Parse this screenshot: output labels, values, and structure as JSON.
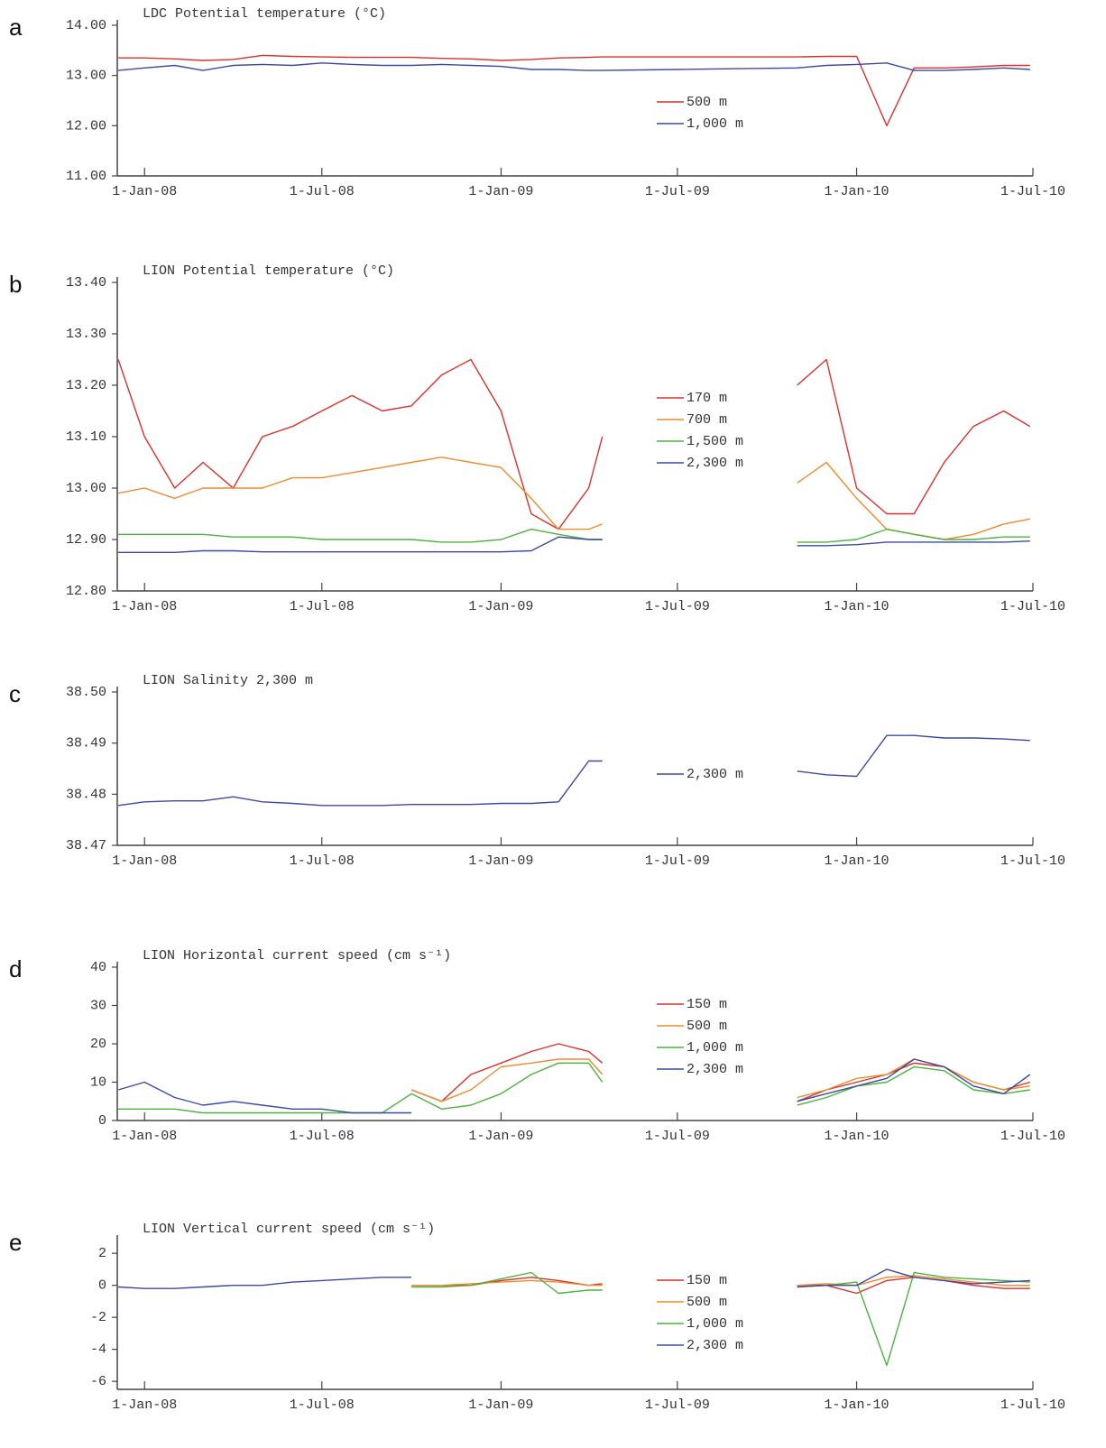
{
  "chart_data": [
    {
      "type": "line",
      "panel_label": "a",
      "title": "LDC Potential temperature (°C)",
      "x": [
        "2007-12-05",
        "2008-01-01",
        "2008-02-01",
        "2008-03-01",
        "2008-04-01",
        "2008-05-01",
        "2008-06-01",
        "2008-07-01",
        "2008-08-01",
        "2008-09-01",
        "2008-10-01",
        "2008-11-01",
        "2008-12-01",
        "2009-01-01",
        "2009-02-01",
        "2009-03-01",
        "2009-04-01",
        "2009-04-15",
        "2009-07-01",
        "2009-11-01",
        "2009-12-01",
        "2010-01-01",
        "2010-02-01",
        "2010-03-01",
        "2010-04-01",
        "2010-05-01",
        "2010-06-01",
        "2010-06-28"
      ],
      "xlim": [
        "2007-12-04",
        "2010-07-01"
      ],
      "xticks": [
        {
          "value": "2008-01-01",
          "label": "1-Jan-08"
        },
        {
          "value": "2008-07-01",
          "label": "1-Jul-08"
        },
        {
          "value": "2009-01-01",
          "label": "1-Jan-09"
        },
        {
          "value": "2009-07-01",
          "label": "1-Jul-09"
        },
        {
          "value": "2010-01-01",
          "label": "1-Jan-10"
        },
        {
          "value": "2010-07-01",
          "label": "1-Jul-10"
        }
      ],
      "ylim": [
        11,
        14
      ],
      "yticks": [
        {
          "value": 11,
          "label": "11.00"
        },
        {
          "value": 12,
          "label": "12.00"
        },
        {
          "value": 13,
          "label": "13.00"
        },
        {
          "value": 14,
          "label": "14.00"
        }
      ],
      "legend": "center",
      "series": [
        {
          "name": "500 m",
          "color": "#d9312b",
          "values": [
            13.35,
            13.35,
            13.33,
            13.3,
            13.32,
            13.4,
            13.38,
            13.37,
            13.36,
            13.36,
            13.36,
            13.34,
            13.33,
            13.3,
            13.32,
            13.35,
            13.36,
            13.37,
            13.37,
            13.37,
            13.38,
            13.38,
            12.0,
            13.15,
            13.15,
            13.17,
            13.2,
            13.2
          ]
        },
        {
          "name": "1,000 m",
          "color": "#3b4aa0",
          "values": [
            13.1,
            13.15,
            13.2,
            13.1,
            13.2,
            13.22,
            13.2,
            13.25,
            13.22,
            13.2,
            13.2,
            13.22,
            13.2,
            13.18,
            13.12,
            13.12,
            13.1,
            13.1,
            13.12,
            13.15,
            13.2,
            13.22,
            13.25,
            13.1,
            13.1,
            13.12,
            13.15,
            13.12
          ]
        }
      ]
    },
    {
      "type": "line",
      "panel_label": "b",
      "title": "LION Potential temperature (°C)",
      "x": [
        "2007-12-05",
        "2008-01-01",
        "2008-02-01",
        "2008-03-01",
        "2008-04-01",
        "2008-05-01",
        "2008-06-01",
        "2008-07-01",
        "2008-08-01",
        "2008-09-01",
        "2008-10-01",
        "2008-11-01",
        "2008-12-01",
        "2009-01-01",
        "2009-02-01",
        "2009-03-01",
        "2009-04-01",
        "2009-04-15",
        "2009-07-01",
        "2009-11-01",
        "2009-12-01",
        "2010-01-01",
        "2010-02-01",
        "2010-03-01",
        "2010-04-01",
        "2010-05-01",
        "2010-06-01",
        "2010-06-28"
      ],
      "xlim": [
        "2007-12-04",
        "2010-07-01"
      ],
      "xticks": [
        {
          "value": "2008-01-01",
          "label": "1-Jan-08"
        },
        {
          "value": "2008-07-01",
          "label": "1-Jul-08"
        },
        {
          "value": "2009-01-01",
          "label": "1-Jan-09"
        },
        {
          "value": "2009-07-01",
          "label": "1-Jul-09"
        },
        {
          "value": "2010-01-01",
          "label": "1-Jan-10"
        },
        {
          "value": "2010-07-01",
          "label": "1-Jul-10"
        }
      ],
      "ylim": [
        12.8,
        13.4
      ],
      "yticks": [
        {
          "value": 12.8,
          "label": "12.80"
        },
        {
          "value": 12.9,
          "label": "12.90"
        },
        {
          "value": 13,
          "label": "13.00"
        },
        {
          "value": 13.1,
          "label": "13.10"
        },
        {
          "value": 13.2,
          "label": "13.20"
        },
        {
          "value": 13.3,
          "label": "13.30"
        },
        {
          "value": 13.4,
          "label": "13.40"
        }
      ],
      "legend": "center",
      "series": [
        {
          "name": "170 m",
          "color": "#d9312b",
          "values": [
            13.25,
            13.1,
            13.0,
            13.05,
            13.0,
            13.1,
            13.12,
            13.15,
            13.18,
            13.15,
            13.16,
            13.22,
            13.25,
            13.15,
            12.95,
            12.92,
            13.0,
            13.1,
            null,
            13.2,
            13.25,
            13.0,
            12.95,
            12.95,
            13.05,
            13.12,
            13.15,
            13.12
          ]
        },
        {
          "name": "700 m",
          "color": "#f08a2c",
          "values": [
            12.99,
            13.0,
            12.98,
            13.0,
            13.0,
            13.0,
            13.02,
            13.02,
            13.03,
            13.04,
            13.05,
            13.06,
            13.05,
            13.04,
            12.98,
            12.92,
            12.92,
            12.93,
            null,
            13.01,
            13.05,
            12.98,
            12.92,
            12.91,
            12.9,
            12.91,
            12.93,
            12.94
          ]
        },
        {
          "name": "1,500 m",
          "color": "#4cb33e",
          "values": [
            12.91,
            12.91,
            12.91,
            12.91,
            12.905,
            12.905,
            12.905,
            12.9,
            12.9,
            12.9,
            12.9,
            12.895,
            12.895,
            12.9,
            12.92,
            12.91,
            12.9,
            12.9,
            null,
            12.895,
            12.895,
            12.9,
            12.92,
            12.91,
            12.9,
            12.9,
            12.905,
            12.905
          ]
        },
        {
          "name": "2,300 m",
          "color": "#3b4aa0",
          "values": [
            12.875,
            12.875,
            12.875,
            12.878,
            12.878,
            12.876,
            12.876,
            12.876,
            12.876,
            12.876,
            12.876,
            12.876,
            12.876,
            12.876,
            12.878,
            12.905,
            12.9,
            12.9,
            null,
            12.888,
            12.888,
            12.89,
            12.895,
            12.895,
            12.895,
            12.895,
            12.895,
            12.897
          ]
        }
      ]
    },
    {
      "type": "line",
      "panel_label": "c",
      "title": "LION Salinity 2,300 m",
      "x": [
        "2007-12-05",
        "2008-01-01",
        "2008-02-01",
        "2008-03-01",
        "2008-04-01",
        "2008-05-01",
        "2008-06-01",
        "2008-07-01",
        "2008-08-01",
        "2008-09-01",
        "2008-10-01",
        "2008-11-01",
        "2008-12-01",
        "2009-01-01",
        "2009-02-01",
        "2009-03-01",
        "2009-04-01",
        "2009-04-15",
        "2009-07-01",
        "2009-11-01",
        "2009-12-01",
        "2010-01-01",
        "2010-02-01",
        "2010-03-01",
        "2010-04-01",
        "2010-05-01",
        "2010-06-01",
        "2010-06-28"
      ],
      "xlim": [
        "2007-12-04",
        "2010-07-01"
      ],
      "xticks": [
        {
          "value": "2008-01-01",
          "label": "1-Jan-08"
        },
        {
          "value": "2008-07-01",
          "label": "1-Jul-08"
        },
        {
          "value": "2009-01-01",
          "label": "1-Jan-09"
        },
        {
          "value": "2009-07-01",
          "label": "1-Jul-09"
        },
        {
          "value": "2010-01-01",
          "label": "1-Jan-10"
        },
        {
          "value": "2010-07-01",
          "label": "1-Jul-10"
        }
      ],
      "ylim": [
        38.47,
        38.5
      ],
      "yticks": [
        38.47,
        38.48,
        38.49,
        {
          "value": 38.5,
          "label": "38.50"
        }
      ],
      "legend": "center",
      "series": [
        {
          "name": "2,300 m",
          "color": "#3b4aa0",
          "values": [
            38.4778,
            38.4785,
            38.4787,
            38.4787,
            38.4795,
            38.4785,
            38.4782,
            38.4778,
            38.4778,
            38.4778,
            38.478,
            38.478,
            38.478,
            38.4782,
            38.4782,
            38.4785,
            38.4865,
            38.4865,
            null,
            38.4845,
            38.4838,
            38.4835,
            38.4915,
            38.4915,
            38.491,
            38.491,
            38.4908,
            38.4905
          ]
        }
      ]
    },
    {
      "type": "line",
      "panel_label": "d",
      "title": "LION Horizontal current speed (cm s⁻¹)",
      "x": [
        "2007-12-05",
        "2008-01-01",
        "2008-02-01",
        "2008-03-01",
        "2008-04-01",
        "2008-05-01",
        "2008-06-01",
        "2008-07-01",
        "2008-08-01",
        "2008-09-01",
        "2008-10-01",
        "2008-11-01",
        "2008-12-01",
        "2009-01-01",
        "2009-02-01",
        "2009-03-01",
        "2009-04-01",
        "2009-04-15",
        "2009-07-01",
        "2009-11-01",
        "2009-12-01",
        "2010-01-01",
        "2010-02-01",
        "2010-03-01",
        "2010-04-01",
        "2010-05-01",
        "2010-06-01",
        "2010-06-28"
      ],
      "xlim": [
        "2007-12-04",
        "2010-07-01"
      ],
      "xticks": [
        {
          "value": "2008-01-01",
          "label": "1-Jan-08"
        },
        {
          "value": "2008-07-01",
          "label": "1-Jul-08"
        },
        {
          "value": "2009-01-01",
          "label": "1-Jan-09"
        },
        {
          "value": "2009-07-01",
          "label": "1-Jul-09"
        },
        {
          "value": "2010-01-01",
          "label": "1-Jan-10"
        },
        {
          "value": "2010-07-01",
          "label": "1-Jul-10"
        }
      ],
      "ylim": [
        0,
        40
      ],
      "yticks": [
        0,
        10,
        20,
        30,
        40
      ],
      "legend": "center",
      "series": [
        {
          "name": "150 m",
          "color": "#d9312b",
          "values": [
            null,
            null,
            null,
            null,
            null,
            null,
            null,
            null,
            null,
            null,
            8,
            5,
            12,
            15,
            18,
            20,
            18,
            15,
            null,
            5,
            8,
            10,
            12,
            15,
            14,
            10,
            8,
            10
          ]
        },
        {
          "name": "500 m",
          "color": "#f08a2c",
          "values": [
            null,
            null,
            null,
            null,
            null,
            null,
            null,
            null,
            null,
            null,
            8,
            5,
            8,
            14,
            15,
            16,
            16,
            12,
            null,
            6,
            8,
            11,
            12,
            16,
            14,
            10,
            8,
            9
          ]
        },
        {
          "name": "1,000 m",
          "color": "#4cb33e",
          "values": [
            3,
            3,
            3,
            2,
            2,
            2,
            2,
            2,
            2,
            2,
            7,
            3,
            4,
            7,
            12,
            15,
            15,
            10,
            null,
            4,
            6,
            9,
            10,
            14,
            13,
            8,
            7,
            8
          ]
        },
        {
          "name": "2,300 m",
          "color": "#3b4aa0",
          "values": [
            8,
            10,
            6,
            4,
            5,
            4,
            3,
            3,
            2,
            2,
            2,
            null,
            null,
            null,
            null,
            null,
            null,
            null,
            null,
            5,
            7,
            9,
            11,
            16,
            14,
            9,
            7,
            12
          ]
        }
      ]
    },
    {
      "type": "line",
      "panel_label": "e",
      "title": "LION Vertical current speed (cm s⁻¹)",
      "x": [
        "2007-12-05",
        "2008-01-01",
        "2008-02-01",
        "2008-03-01",
        "2008-04-01",
        "2008-05-01",
        "2008-06-01",
        "2008-07-01",
        "2008-08-01",
        "2008-09-01",
        "2008-10-01",
        "2008-11-01",
        "2008-12-01",
        "2009-01-01",
        "2009-02-01",
        "2009-03-01",
        "2009-04-01",
        "2009-04-15",
        "2009-07-01",
        "2009-11-01",
        "2009-12-01",
        "2010-01-01",
        "2010-02-01",
        "2010-03-01",
        "2010-04-01",
        "2010-05-01",
        "2010-06-01",
        "2010-06-28"
      ],
      "xlim": [
        "2007-12-04",
        "2010-07-01"
      ],
      "xticks": [
        {
          "value": "2008-01-01",
          "label": "1-Jan-08"
        },
        {
          "value": "2008-07-01",
          "label": "1-Jul-08"
        },
        {
          "value": "2009-01-01",
          "label": "1-Jan-09"
        },
        {
          "value": "2009-07-01",
          "label": "1-Jul-09"
        },
        {
          "value": "2010-01-01",
          "label": "1-Jan-10"
        },
        {
          "value": "2010-07-01",
          "label": "1-Jul-10"
        }
      ],
      "ylim": [
        -6.5,
        2.8
      ],
      "yticks": [
        -6,
        -4,
        -2,
        0,
        2
      ],
      "legend": "center",
      "series": [
        {
          "name": "150 m",
          "color": "#d9312b",
          "values": [
            null,
            null,
            null,
            null,
            null,
            null,
            null,
            null,
            null,
            null,
            0,
            0,
            0,
            0.3,
            0.5,
            0.3,
            0,
            0.1,
            null,
            0,
            0,
            -0.5,
            0.3,
            0.5,
            0.3,
            0,
            -0.2,
            -0.2
          ]
        },
        {
          "name": "500 m",
          "color": "#f08a2c",
          "values": [
            null,
            null,
            null,
            null,
            null,
            null,
            null,
            null,
            null,
            null,
            0,
            0,
            0.1,
            0.2,
            0.3,
            0.2,
            0,
            0,
            null,
            0,
            0.1,
            0,
            0.5,
            0.6,
            0.4,
            0.2,
            0,
            0
          ]
        },
        {
          "name": "1,000 m",
          "color": "#4cb33e",
          "values": [
            null,
            null,
            null,
            null,
            null,
            null,
            null,
            null,
            null,
            null,
            -0.1,
            -0.1,
            0,
            0.4,
            0.8,
            -0.5,
            -0.3,
            -0.3,
            null,
            -0.1,
            0,
            0.2,
            -5.0,
            0.8,
            0.5,
            0.4,
            0.3,
            0.2
          ]
        },
        {
          "name": "2,300 m",
          "color": "#3b4aa0",
          "values": [
            -0.1,
            -0.2,
            -0.2,
            -0.1,
            0,
            0,
            0.2,
            0.3,
            0.4,
            0.5,
            0.5,
            null,
            null,
            null,
            null,
            null,
            null,
            null,
            null,
            -0.1,
            0,
            0,
            1.0,
            0.5,
            0.3,
            0.1,
            0.2,
            0.3
          ]
        }
      ]
    }
  ]
}
